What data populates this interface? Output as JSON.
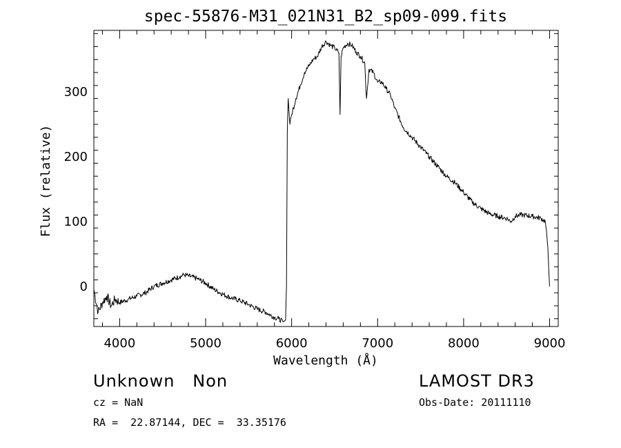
{
  "chart_data": {
    "type": "line",
    "title": "spec-55876-M31_021N31_B2_sp09-099.fits",
    "xlabel": "Wavelength (Å)",
    "ylabel": "Flux (relative)",
    "xlim": [
      3700,
      9100
    ],
    "ylim": [
      -62,
      395
    ],
    "xticks": [
      4000,
      5000,
      6000,
      7000,
      8000,
      9000
    ],
    "yticks": [
      0,
      100,
      200,
      300
    ],
    "grid": false,
    "series": [
      {
        "x": [
          3700,
          3750,
          3800,
          3850,
          3900,
          3950,
          4000,
          4100,
          4200,
          4300,
          4400,
          4500,
          4600,
          4700,
          4750,
          4800,
          4900,
          5000,
          5100,
          5200,
          5300,
          5400,
          5500,
          5600,
          5700,
          5800,
          5850,
          5900,
          5930,
          5940,
          5950,
          5960,
          5980,
          6000,
          6050,
          6100,
          6150,
          6200,
          6250,
          6300,
          6350,
          6400,
          6450,
          6500,
          6550,
          6563,
          6575,
          6600,
          6650,
          6700,
          6750,
          6800,
          6850,
          6870,
          6900,
          6950,
          7000,
          7050,
          7100,
          7150,
          7200,
          7300,
          7400,
          7500,
          7600,
          7700,
          7800,
          7900,
          8000,
          8100,
          8200,
          8300,
          8400,
          8500,
          8550,
          8600,
          8650,
          8700,
          8800,
          8900,
          8950,
          8980,
          9000
        ],
        "y": [
          -5,
          -40,
          -25,
          -15,
          -30,
          -20,
          -25,
          -20,
          -15,
          -10,
          0,
          5,
          10,
          15,
          18,
          16,
          12,
          5,
          -5,
          -12,
          -18,
          -22,
          -28,
          -35,
          -40,
          -48,
          -50,
          -55,
          -52,
          0,
          240,
          290,
          250,
          265,
          290,
          310,
          330,
          340,
          350,
          355,
          370,
          378,
          372,
          368,
          360,
          265,
          355,
          368,
          375,
          372,
          362,
          355,
          345,
          290,
          335,
          330,
          315,
          315,
          305,
          295,
          275,
          245,
          230,
          215,
          200,
          185,
          170,
          160,
          145,
          130,
          120,
          112,
          108,
          105,
          100,
          108,
          110,
          110,
          108,
          105,
          100,
          60,
          0
        ]
      }
    ]
  },
  "info": {
    "class_line": "Unknown   Non",
    "survey": "LAMOST DR3",
    "cz_line": "cz = NaN",
    "obs_date_line": "Obs-Date: 20111110",
    "coords_line": "RA =  22.87144, DEC =  33.35176"
  }
}
